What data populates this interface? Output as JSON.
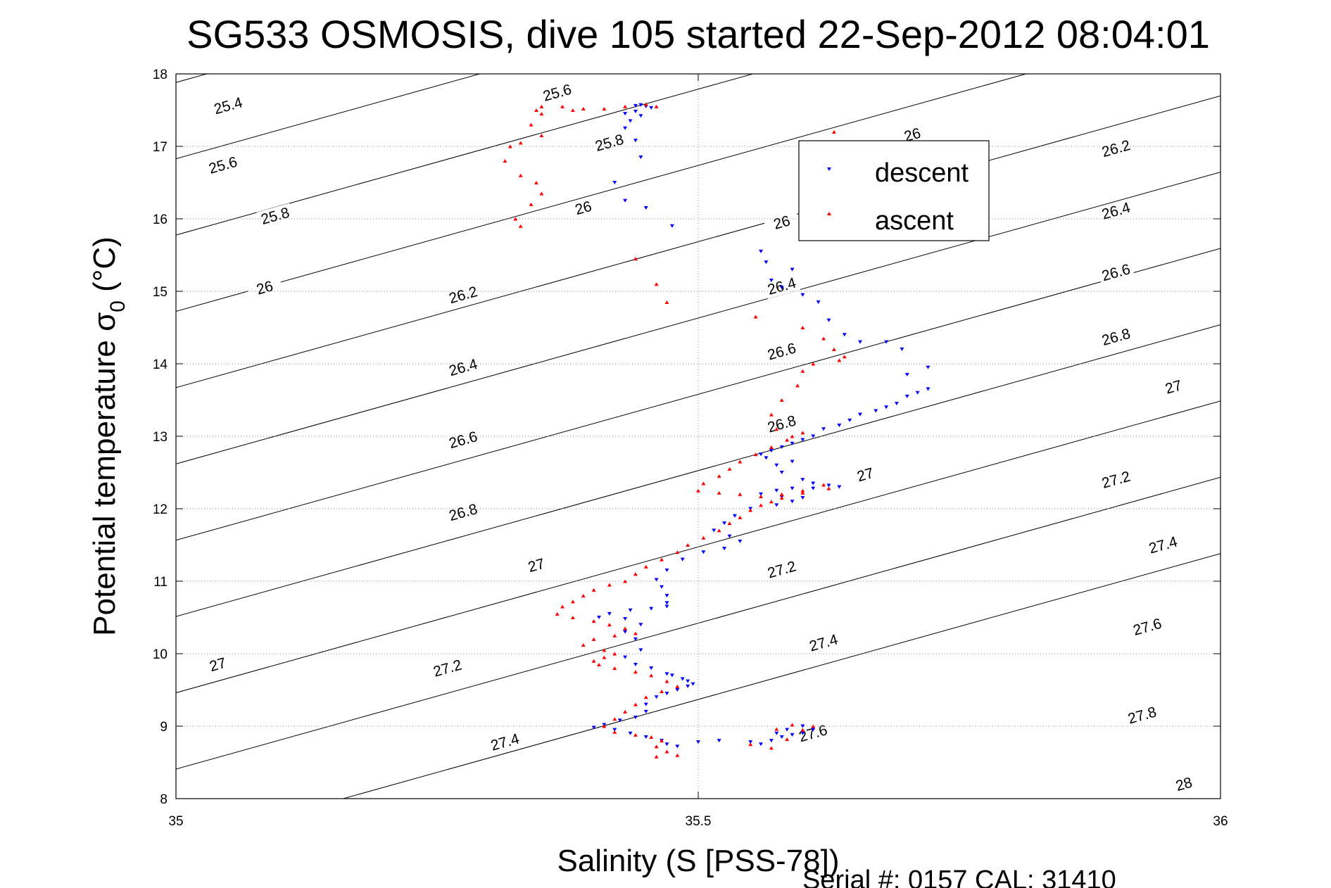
{
  "chart_data": {
    "type": "scatter",
    "title": "SG533 OSMOSIS, dive 105 started 22-Sep-2012 08:04:01",
    "xlabel": "Salinity (S [PSS-78])",
    "ylabel": "Potential temperature",
    "ylabel_symbol": "σ",
    "ylabel_sub": "0",
    "ylabel_unit": " (°C)",
    "xlim": [
      35,
      36
    ],
    "ylim": [
      8,
      18
    ],
    "x_ticks": [
      "35",
      "35.5",
      "36"
    ],
    "y_ticks": [
      "8",
      "9",
      "10",
      "11",
      "12",
      "13",
      "14",
      "15",
      "16",
      "17",
      "18"
    ],
    "grid": "dotted at 35.5 and each degree",
    "legend_position": "top-right",
    "footer": "Serial #: 0157  CAL: 31410",
    "density_contours": {
      "levels": [
        25.4,
        25.6,
        25.8,
        26,
        26.2,
        26.4,
        26.6,
        26.8,
        27,
        27.2,
        27.4,
        27.6,
        27.8,
        28
      ],
      "labels": [
        {
          "text": "25.4",
          "x": 35.05,
          "y": 17.56
        },
        {
          "text": "25.6",
          "x": 35.365,
          "y": 17.74
        },
        {
          "text": "25.6",
          "x": 35.045,
          "y": 16.74
        },
        {
          "text": "25.8",
          "x": 35.415,
          "y": 17.05
        },
        {
          "text": "25.8",
          "x": 35.095,
          "y": 16.04
        },
        {
          "text": "26",
          "x": 35.705,
          "y": 17.16
        },
        {
          "text": "26",
          "x": 35.39,
          "y": 16.15
        },
        {
          "text": "26",
          "x": 35.085,
          "y": 15.05
        },
        {
          "text": "26",
          "x": 35.58,
          "y": 15.95
        },
        {
          "text": "26.2",
          "x": 35.9,
          "y": 16.97
        },
        {
          "text": "26.2",
          "x": 35.275,
          "y": 14.95
        },
        {
          "text": "26.4",
          "x": 35.9,
          "y": 16.11
        },
        {
          "text": "26.4",
          "x": 35.58,
          "y": 15.07
        },
        {
          "text": "26.4",
          "x": 35.275,
          "y": 13.95
        },
        {
          "text": "26.6",
          "x": 35.9,
          "y": 15.26
        },
        {
          "text": "26.6",
          "x": 35.58,
          "y": 14.17
        },
        {
          "text": "26.6",
          "x": 35.275,
          "y": 12.95
        },
        {
          "text": "26.8",
          "x": 35.9,
          "y": 14.37
        },
        {
          "text": "26.8",
          "x": 35.58,
          "y": 13.17
        },
        {
          "text": "26.8",
          "x": 35.275,
          "y": 11.95
        },
        {
          "text": "27",
          "x": 35.955,
          "y": 13.68
        },
        {
          "text": "27",
          "x": 35.66,
          "y": 12.47
        },
        {
          "text": "27",
          "x": 35.345,
          "y": 11.22
        },
        {
          "text": "27",
          "x": 35.04,
          "y": 9.85
        },
        {
          "text": "27.2",
          "x": 35.9,
          "y": 12.4
        },
        {
          "text": "27.2",
          "x": 35.58,
          "y": 11.16
        },
        {
          "text": "27.2",
          "x": 35.26,
          "y": 9.8
        },
        {
          "text": "27.4",
          "x": 35.945,
          "y": 11.5
        },
        {
          "text": "27.4",
          "x": 35.62,
          "y": 10.15
        },
        {
          "text": "27.4",
          "x": 35.315,
          "y": 8.78
        },
        {
          "text": "27.6",
          "x": 35.93,
          "y": 10.37
        },
        {
          "text": "27.6",
          "x": 35.61,
          "y": 8.9
        },
        {
          "text": "27.8",
          "x": 35.925,
          "y": 9.15
        },
        {
          "text": "28",
          "x": 35.965,
          "y": 8.2
        }
      ]
    },
    "series": [
      {
        "name": "descent",
        "color": "#0000ff",
        "marker": "triangle-down",
        "points": [
          [
            35.44,
            17.56
          ],
          [
            35.445,
            17.57
          ],
          [
            35.45,
            17.55
          ],
          [
            35.455,
            17.53
          ],
          [
            35.44,
            17.48
          ],
          [
            35.43,
            17.45
          ],
          [
            35.445,
            17.42
          ],
          [
            35.435,
            17.35
          ],
          [
            35.43,
            17.25
          ],
          [
            35.44,
            17.08
          ],
          [
            35.445,
            16.85
          ],
          [
            35.42,
            16.5
          ],
          [
            35.43,
            16.25
          ],
          [
            35.45,
            16.15
          ],
          [
            35.475,
            15.9
          ],
          [
            35.56,
            15.55
          ],
          [
            35.565,
            15.4
          ],
          [
            35.57,
            15.15
          ],
          [
            35.58,
            15.05
          ],
          [
            35.59,
            15.3
          ],
          [
            35.6,
            14.95
          ],
          [
            35.615,
            14.85
          ],
          [
            35.625,
            14.6
          ],
          [
            35.64,
            14.4
          ],
          [
            35.68,
            14.3
          ],
          [
            35.655,
            14.3
          ],
          [
            35.695,
            14.2
          ],
          [
            35.72,
            13.95
          ],
          [
            35.7,
            13.85
          ],
          [
            35.72,
            13.65
          ],
          [
            35.71,
            13.6
          ],
          [
            35.7,
            13.55
          ],
          [
            35.69,
            13.45
          ],
          [
            35.68,
            13.4
          ],
          [
            35.67,
            13.35
          ],
          [
            35.655,
            13.3
          ],
          [
            35.645,
            13.22
          ],
          [
            35.635,
            13.15
          ],
          [
            35.62,
            13.1
          ],
          [
            35.61,
            13.0
          ],
          [
            35.6,
            12.95
          ],
          [
            35.59,
            12.9
          ],
          [
            35.58,
            12.85
          ],
          [
            35.57,
            12.8
          ],
          [
            35.56,
            12.75
          ],
          [
            35.565,
            12.7
          ],
          [
            35.59,
            12.65
          ],
          [
            35.575,
            12.6
          ],
          [
            35.58,
            12.5
          ],
          [
            35.6,
            12.4
          ],
          [
            35.61,
            12.35
          ],
          [
            35.625,
            12.32
          ],
          [
            35.635,
            12.3
          ],
          [
            35.61,
            12.28
          ],
          [
            35.59,
            12.28
          ],
          [
            35.575,
            12.25
          ],
          [
            35.56,
            12.2
          ],
          [
            35.58,
            12.16
          ],
          [
            35.6,
            12.15
          ],
          [
            35.59,
            12.1
          ],
          [
            35.575,
            12.05
          ],
          [
            35.55,
            12.0
          ],
          [
            35.535,
            11.9
          ],
          [
            35.525,
            11.8
          ],
          [
            35.515,
            11.7
          ],
          [
            35.53,
            11.62
          ],
          [
            35.54,
            11.55
          ],
          [
            35.525,
            11.45
          ],
          [
            35.505,
            11.4
          ],
          [
            35.485,
            11.3
          ],
          [
            35.47,
            11.15
          ],
          [
            35.46,
            11.02
          ],
          [
            35.465,
            10.92
          ],
          [
            35.47,
            10.8
          ],
          [
            35.47,
            10.7
          ],
          [
            35.47,
            10.65
          ],
          [
            35.455,
            10.62
          ],
          [
            35.435,
            10.6
          ],
          [
            35.415,
            10.55
          ],
          [
            35.405,
            10.5
          ],
          [
            35.43,
            10.48
          ],
          [
            35.445,
            10.4
          ],
          [
            35.43,
            10.3
          ],
          [
            35.44,
            10.2
          ],
          [
            35.445,
            10.05
          ],
          [
            35.43,
            9.95
          ],
          [
            35.44,
            9.85
          ],
          [
            35.455,
            9.8
          ],
          [
            35.47,
            9.72
          ],
          [
            35.475,
            9.7
          ],
          [
            35.485,
            9.65
          ],
          [
            35.49,
            9.62
          ],
          [
            35.495,
            9.58
          ],
          [
            35.49,
            9.55
          ],
          [
            35.48,
            9.5
          ],
          [
            35.47,
            9.45
          ],
          [
            35.46,
            9.4
          ],
          [
            35.45,
            9.3
          ],
          [
            35.45,
            9.2
          ],
          [
            35.44,
            9.12
          ],
          [
            35.425,
            9.08
          ],
          [
            35.41,
            9.02
          ],
          [
            35.4,
            8.98
          ],
          [
            35.42,
            8.95
          ],
          [
            35.435,
            8.9
          ],
          [
            35.45,
            8.85
          ],
          [
            35.465,
            8.8
          ],
          [
            35.47,
            8.75
          ],
          [
            35.48,
            8.72
          ],
          [
            35.5,
            8.78
          ],
          [
            35.52,
            8.8
          ],
          [
            35.55,
            8.78
          ],
          [
            35.56,
            8.75
          ],
          [
            35.57,
            8.8
          ],
          [
            35.58,
            8.85
          ],
          [
            35.59,
            8.88
          ],
          [
            35.6,
            8.9
          ],
          [
            35.61,
            8.95
          ],
          [
            35.6,
            9.0
          ],
          [
            35.585,
            8.95
          ],
          [
            35.575,
            8.9
          ]
        ]
      },
      {
        "name": "ascent",
        "color": "#ff0000",
        "marker": "triangle-up",
        "points": [
          [
            35.46,
            17.55
          ],
          [
            35.45,
            17.58
          ],
          [
            35.43,
            17.55
          ],
          [
            35.41,
            17.52
          ],
          [
            35.39,
            17.52
          ],
          [
            35.38,
            17.5
          ],
          [
            35.37,
            17.55
          ],
          [
            35.35,
            17.55
          ],
          [
            35.345,
            17.5
          ],
          [
            35.35,
            17.45
          ],
          [
            35.34,
            17.3
          ],
          [
            35.35,
            17.15
          ],
          [
            35.33,
            17.05
          ],
          [
            35.32,
            17.0
          ],
          [
            35.315,
            16.8
          ],
          [
            35.33,
            16.6
          ],
          [
            35.345,
            16.5
          ],
          [
            35.35,
            16.35
          ],
          [
            35.34,
            16.2
          ],
          [
            35.325,
            16.0
          ],
          [
            35.33,
            15.9
          ],
          [
            35.63,
            17.2
          ],
          [
            35.645,
            17.05
          ],
          [
            35.44,
            15.45
          ],
          [
            35.46,
            15.1
          ],
          [
            35.47,
            14.85
          ],
          [
            35.555,
            14.65
          ],
          [
            35.6,
            14.5
          ],
          [
            35.62,
            14.35
          ],
          [
            35.63,
            14.2
          ],
          [
            35.635,
            14.05
          ],
          [
            35.64,
            14.1
          ],
          [
            35.61,
            14.0
          ],
          [
            35.6,
            13.9
          ],
          [
            35.595,
            13.7
          ],
          [
            35.58,
            13.5
          ],
          [
            35.57,
            13.3
          ],
          [
            35.575,
            13.1
          ],
          [
            35.59,
            13.0
          ],
          [
            35.6,
            13.05
          ],
          [
            35.585,
            12.95
          ],
          [
            35.57,
            12.85
          ],
          [
            35.555,
            12.75
          ],
          [
            35.54,
            12.65
          ],
          [
            35.53,
            12.55
          ],
          [
            35.52,
            12.45
          ],
          [
            35.505,
            12.35
          ],
          [
            35.5,
            12.25
          ],
          [
            35.52,
            12.22
          ],
          [
            35.54,
            12.2
          ],
          [
            35.56,
            12.17
          ],
          [
            35.58,
            12.2
          ],
          [
            35.6,
            12.22
          ],
          [
            35.625,
            12.28
          ],
          [
            35.62,
            12.33
          ],
          [
            35.6,
            12.25
          ],
          [
            35.58,
            12.15
          ],
          [
            35.57,
            12.1
          ],
          [
            35.56,
            12.05
          ],
          [
            35.55,
            11.98
          ],
          [
            35.54,
            11.88
          ],
          [
            35.53,
            11.8
          ],
          [
            35.52,
            11.7
          ],
          [
            35.505,
            11.6
          ],
          [
            35.49,
            11.5
          ],
          [
            35.48,
            11.4
          ],
          [
            35.465,
            11.3
          ],
          [
            35.45,
            11.2
          ],
          [
            35.44,
            11.1
          ],
          [
            35.43,
            11.0
          ],
          [
            35.415,
            10.95
          ],
          [
            35.4,
            10.88
          ],
          [
            35.39,
            10.8
          ],
          [
            35.38,
            10.72
          ],
          [
            35.37,
            10.65
          ],
          [
            35.365,
            10.55
          ],
          [
            35.38,
            10.5
          ],
          [
            35.4,
            10.45
          ],
          [
            35.415,
            10.4
          ],
          [
            35.43,
            10.35
          ],
          [
            35.44,
            10.28
          ],
          [
            35.42,
            10.25
          ],
          [
            35.4,
            10.2
          ],
          [
            35.39,
            10.12
          ],
          [
            35.41,
            10.05
          ],
          [
            35.42,
            10.0
          ],
          [
            35.41,
            9.95
          ],
          [
            35.4,
            9.9
          ],
          [
            35.405,
            9.85
          ],
          [
            35.42,
            9.8
          ],
          [
            35.44,
            9.75
          ],
          [
            35.455,
            9.7
          ],
          [
            35.47,
            9.62
          ],
          [
            35.48,
            9.55
          ],
          [
            35.465,
            9.48
          ],
          [
            35.45,
            9.4
          ],
          [
            35.44,
            9.3
          ],
          [
            35.43,
            9.2
          ],
          [
            35.42,
            9.1
          ],
          [
            35.41,
            9.0
          ],
          [
            35.42,
            8.92
          ],
          [
            35.44,
            8.88
          ],
          [
            35.455,
            8.85
          ],
          [
            35.465,
            8.8
          ],
          [
            35.46,
            8.72
          ],
          [
            35.47,
            8.65
          ],
          [
            35.48,
            8.6
          ],
          [
            35.46,
            8.58
          ],
          [
            35.55,
            8.75
          ],
          [
            35.57,
            8.7
          ],
          [
            35.585,
            8.82
          ],
          [
            35.6,
            8.95
          ],
          [
            35.61,
            9.0
          ],
          [
            35.59,
            9.02
          ],
          [
            35.575,
            8.96
          ]
        ]
      }
    ]
  }
}
